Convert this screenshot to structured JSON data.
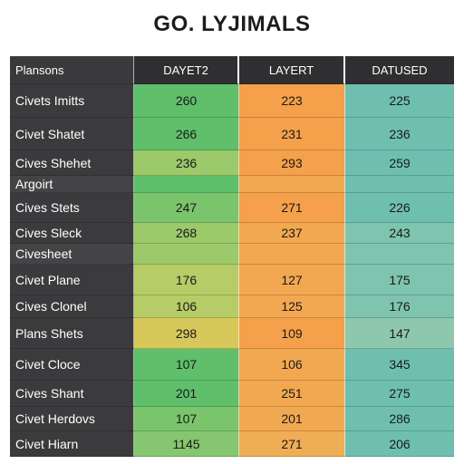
{
  "title": "GO. LYJIMALS",
  "headers": [
    "Plansons",
    "DAYET2",
    "LAYERT",
    "DATUSED"
  ],
  "rows": [
    {
      "label": "Civets Imitts",
      "values": [
        "260",
        "223",
        "225"
      ]
    },
    {
      "label": "Civet Shatet",
      "values": [
        "266",
        "231",
        "236"
      ]
    },
    {
      "label": "Cives Shehet",
      "values": [
        "236",
        "293",
        "259"
      ]
    },
    {
      "label": "Argoirt",
      "values": [
        "",
        "",
        ""
      ]
    },
    {
      "label": "Cives Stets",
      "values": [
        "247",
        "271",
        "226"
      ]
    },
    {
      "label": "Cives Sleck",
      "values": [
        "268",
        "237",
        "243"
      ]
    },
    {
      "label": "Civesheet",
      "values": [
        "",
        "",
        ""
      ]
    },
    {
      "label": "Civet Plane",
      "values": [
        "176",
        "127",
        "175"
      ]
    },
    {
      "label": "Cives Clonel",
      "values": [
        "106",
        "125",
        "176"
      ]
    },
    {
      "label": "Plans Shets",
      "values": [
        "298",
        "109",
        "147"
      ]
    },
    {
      "label": "Civet Cloce",
      "values": [
        "107",
        "106",
        "345"
      ]
    },
    {
      "label": "Cives Shant",
      "values": [
        "201",
        "251",
        "275"
      ]
    },
    {
      "label": "Civet Herdovs",
      "values": [
        "107",
        "201",
        "286"
      ]
    },
    {
      "label": "Civet Hiarn",
      "values": [
        "1145",
        "271",
        "206"
      ]
    }
  ]
}
